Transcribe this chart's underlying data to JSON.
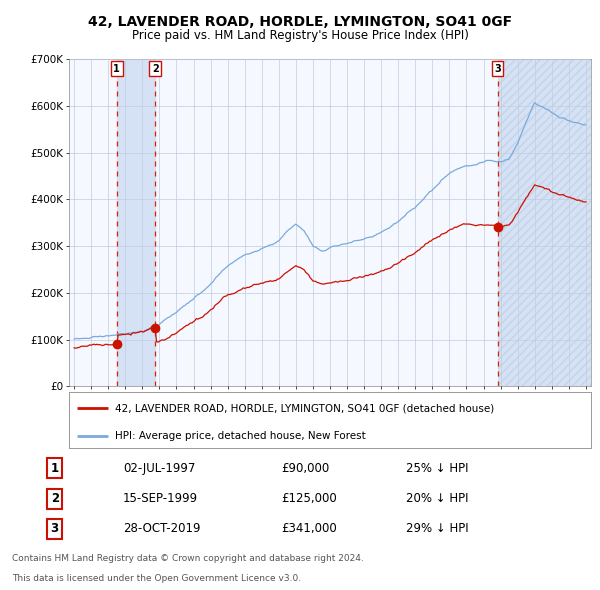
{
  "title": "42, LAVENDER ROAD, HORDLE, LYMINGTON, SO41 0GF",
  "subtitle": "Price paid vs. HM Land Registry's House Price Index (HPI)",
  "legend_line1": "42, LAVENDER ROAD, HORDLE, LYMINGTON, SO41 0GF (detached house)",
  "legend_line2": "HPI: Average price, detached house, New Forest",
  "footer1": "Contains HM Land Registry data © Crown copyright and database right 2024.",
  "footer2": "This data is licensed under the Open Government Licence v3.0.",
  "transactions": [
    {
      "num": 1,
      "date": "02-JUL-1997",
      "price": 90000,
      "price_str": "£90,000",
      "pct": "25%",
      "x": 1997.5
    },
    {
      "num": 2,
      "date": "15-SEP-1999",
      "price": 125000,
      "price_str": "£125,000",
      "pct": "20%",
      "x": 1999.75
    },
    {
      "num": 3,
      "date": "28-OCT-2019",
      "price": 341000,
      "price_str": "£341,000",
      "pct": "29%",
      "x": 2019.83
    }
  ],
  "ylim": [
    0,
    700000
  ],
  "yticks": [
    0,
    100000,
    200000,
    300000,
    400000,
    500000,
    600000,
    700000
  ],
  "ytick_labels": [
    "£0",
    "£100K",
    "£200K",
    "£300K",
    "£400K",
    "£500K",
    "£600K",
    "£700K"
  ],
  "xlim_start": 1994.7,
  "xlim_end": 2025.3,
  "hpi_color": "#7aaadd",
  "sale_color": "#cc1100",
  "plot_bg": "#f5f8ff",
  "grid_color": "#c0cce0",
  "shade_color": "#d0dff5",
  "hatch_color": "#c0cce0"
}
